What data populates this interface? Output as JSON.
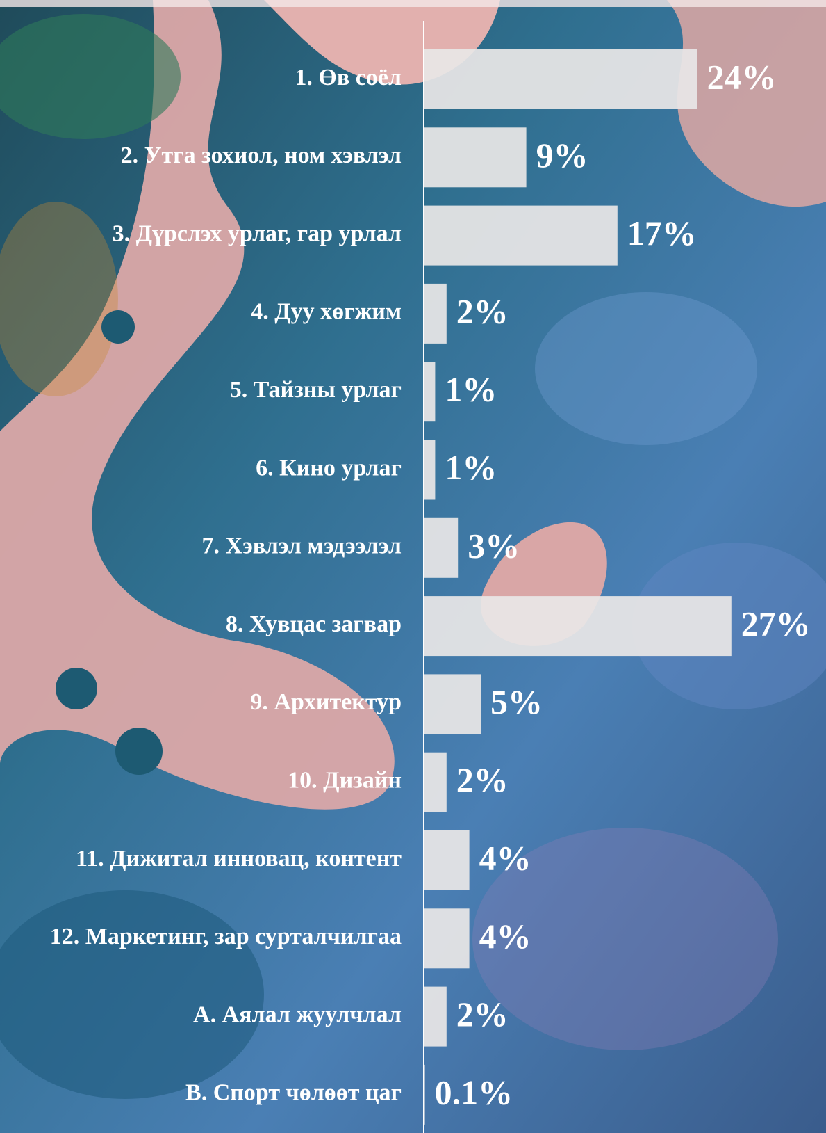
{
  "chart_data": {
    "type": "bar",
    "orientation": "horizontal",
    "categories": [
      "1. Өв соёл",
      "2. Утга зохиол, ном хэвлэл",
      "3. Дүрслэх урлаг, гар урлал",
      "4. Дуу хөгжим",
      "5. Тайзны урлаг",
      "6. Кино урлаг",
      "7. Хэвлэл мэдээлэл",
      "8. Хувцас загвар",
      "9. Архитектур",
      "10. Дизайн",
      "11. Дижитал инновац, контент",
      "12. Маркетинг, зар сурталчилгаа",
      "A. Аялал жуулчлал",
      "B. Спорт чөлөөт цаг"
    ],
    "values": [
      24,
      9,
      17,
      2,
      1,
      1,
      3,
      27,
      5,
      2,
      4,
      4,
      2,
      0.1
    ],
    "value_labels": [
      "24%",
      "9%",
      "17%",
      "2%",
      "1%",
      "1%",
      "3%",
      "27%",
      "5%",
      "2%",
      "4%",
      "4%",
      "2%",
      "0.1%"
    ],
    "color": "#e8e6e6"
  }
}
